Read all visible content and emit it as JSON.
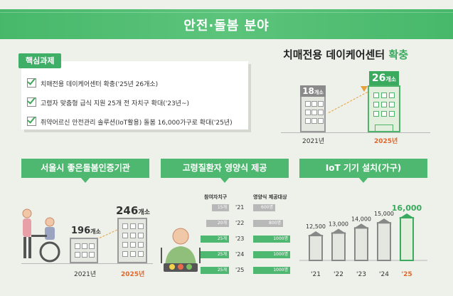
{
  "banner": {
    "title": "안전·돌봄 분야"
  },
  "core": {
    "tag": "핵심과제",
    "items": [
      "치매전용 데이케어센터 확충('25년 26개소)",
      "고령자 맞춤형 급식 지원 25개 전 자치구 확대('23년~)",
      "취약어르신 안전관리 솔루션(IoT활용) 돌봄 16,000가구로 확대('25년)"
    ]
  },
  "daycare": {
    "title_main": "치매전용 데이케어센터",
    "title_accent": "확충",
    "b2021": {
      "num": "18",
      "unit": "개소",
      "year": "2021년"
    },
    "b2025": {
      "num": "26",
      "unit": "개소",
      "year": "2025년"
    }
  },
  "sections": {
    "care": "서울시 좋은돌봄인증기관",
    "meal": "고령질환자 영양식 제공",
    "iot": "IoT 기기 설치(가구)"
  },
  "care": {
    "v2021": {
      "num": "196",
      "unit": "개소"
    },
    "v2025": {
      "num": "246",
      "unit": "개소"
    },
    "y2021": "2021년",
    "y2025": "2025년"
  },
  "meal": {
    "left_header": "참여자치구",
    "right_header": "영양식 제공대상",
    "rows": [
      {
        "year": "'21",
        "left": "15개",
        "right": "600명",
        "left_frac": 0.6,
        "right_frac": 0.6,
        "highlight": false
      },
      {
        "year": "'22",
        "left": "20개",
        "right": "800명",
        "left_frac": 0.8,
        "right_frac": 0.8,
        "highlight": false
      },
      {
        "year": "'23",
        "left": "25개",
        "right": "1000명",
        "left_frac": 1.0,
        "right_frac": 1.0,
        "highlight": true
      },
      {
        "year": "'24",
        "left": "25개",
        "right": "1000명",
        "left_frac": 1.0,
        "right_frac": 1.0,
        "highlight": true
      },
      {
        "year": "'25",
        "left": "25개",
        "right": "1000명",
        "left_frac": 1.0,
        "right_frac": 1.0,
        "highlight": true
      }
    ]
  },
  "chart_data": {
    "type": "bar",
    "categories": [
      "'21",
      "'22",
      "'23",
      "'24",
      "'25"
    ],
    "values": [
      12500,
      13000,
      14000,
      15000,
      16000
    ],
    "labels": [
      "12,500",
      "13,000",
      "14,000",
      "15,000",
      "16,000"
    ],
    "title": "IoT 기기 설치(가구)",
    "ylim": [
      10000,
      16000
    ]
  },
  "colors": {
    "green": "#3aaa5e",
    "light_green": "#4fb870",
    "gray": "#8a8a8a",
    "orange": "#e0672a"
  }
}
